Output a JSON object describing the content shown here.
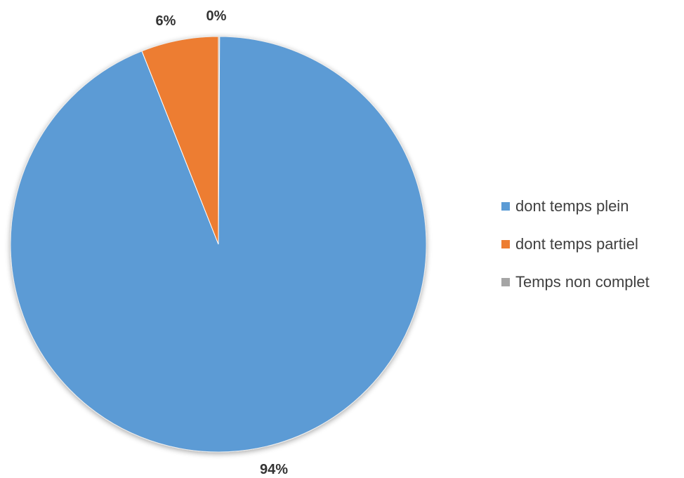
{
  "chart_data": {
    "type": "pie",
    "title": "",
    "slices": [
      {
        "label": "dont temps plein",
        "value": 94,
        "display": "94%",
        "color": "#5B9BD5"
      },
      {
        "label": "dont temps partiel",
        "value": 6,
        "display": "6%",
        "color": "#ED7D31"
      },
      {
        "label": "Temps non complet",
        "value": 0,
        "display": "0%",
        "color": "#A5A5A5"
      }
    ],
    "legend_position": "right"
  }
}
